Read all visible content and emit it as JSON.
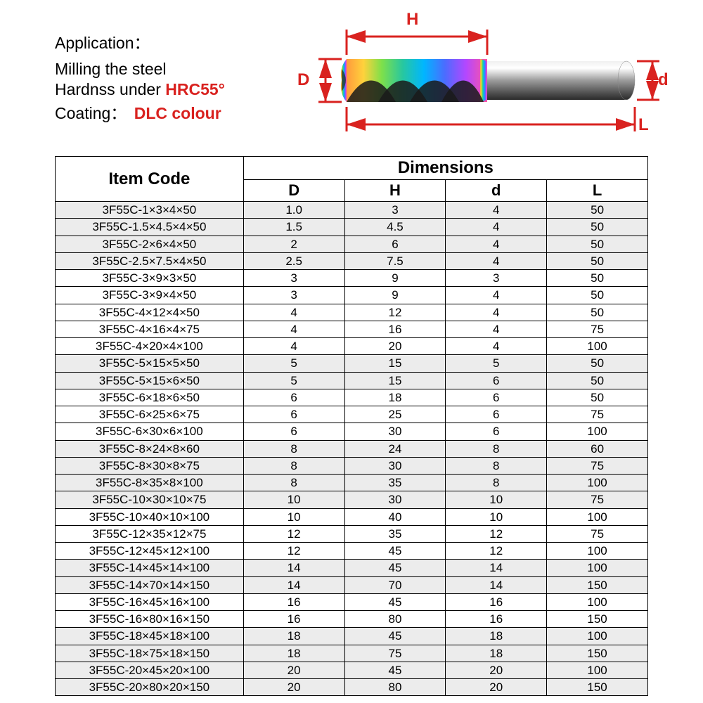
{
  "header": {
    "application_label": "Application：",
    "line1": "Milling the steel",
    "line2_prefix": "Hardnss under ",
    "line2_hrc": "HRC55°",
    "coating_label": "Coating：",
    "coating_value": "DLC colour"
  },
  "diagram": {
    "labels": {
      "D": "D",
      "H": "H",
      "d": "d",
      "L": "L"
    },
    "label_color": "#d9221f",
    "label_fontsize": 24,
    "arrow_color": "#d9221f"
  },
  "table": {
    "header_item": "Item Code",
    "header_dimensions": "Dimensions",
    "columns": [
      "D",
      "H",
      "d",
      "L"
    ],
    "shade_color": "#ececec",
    "border_color": "#000000",
    "font_size_body": 17,
    "shaded_rows": [
      0,
      1,
      2,
      3,
      9,
      10,
      14,
      15,
      16,
      17,
      21,
      22,
      25,
      26,
      27,
      28
    ],
    "rows": [
      {
        "code": "3F55C-1×3×4×50",
        "D": "1.0",
        "H": "3",
        "d": "4",
        "L": "50"
      },
      {
        "code": "3F55C-1.5×4.5×4×50",
        "D": "1.5",
        "H": "4.5",
        "d": "4",
        "L": "50"
      },
      {
        "code": "3F55C-2×6×4×50",
        "D": "2",
        "H": "6",
        "d": "4",
        "L": "50"
      },
      {
        "code": "3F55C-2.5×7.5×4×50",
        "D": "2.5",
        "H": "7.5",
        "d": "4",
        "L": "50"
      },
      {
        "code": "3F55C-3×9×3×50",
        "D": "3",
        "H": "9",
        "d": "3",
        "L": "50"
      },
      {
        "code": "3F55C-3×9×4×50",
        "D": "3",
        "H": "9",
        "d": "4",
        "L": "50"
      },
      {
        "code": "3F55C-4×12×4×50",
        "D": "4",
        "H": "12",
        "d": "4",
        "L": "50"
      },
      {
        "code": "3F55C-4×16×4×75",
        "D": "4",
        "H": "16",
        "d": "4",
        "L": "75"
      },
      {
        "code": "3F55C-4×20×4×100",
        "D": "4",
        "H": "20",
        "d": "4",
        "L": "100"
      },
      {
        "code": "3F55C-5×15×5×50",
        "D": "5",
        "H": "15",
        "d": "5",
        "L": "50"
      },
      {
        "code": "3F55C-5×15×6×50",
        "D": "5",
        "H": "15",
        "d": "6",
        "L": "50"
      },
      {
        "code": "3F55C-6×18×6×50",
        "D": "6",
        "H": "18",
        "d": "6",
        "L": "50"
      },
      {
        "code": "3F55C-6×25×6×75",
        "D": "6",
        "H": "25",
        "d": "6",
        "L": "75"
      },
      {
        "code": "3F55C-6×30×6×100",
        "D": "6",
        "H": "30",
        "d": "6",
        "L": "100"
      },
      {
        "code": "3F55C-8×24×8×60",
        "D": "8",
        "H": "24",
        "d": "8",
        "L": "60"
      },
      {
        "code": "3F55C-8×30×8×75",
        "D": "8",
        "H": "30",
        "d": "8",
        "L": "75"
      },
      {
        "code": "3F55C-8×35×8×100",
        "D": "8",
        "H": "35",
        "d": "8",
        "L": "100"
      },
      {
        "code": "3F55C-10×30×10×75",
        "D": "10",
        "H": "30",
        "d": "10",
        "L": "75"
      },
      {
        "code": "3F55C-10×40×10×100",
        "D": "10",
        "H": "40",
        "d": "10",
        "L": "100"
      },
      {
        "code": "3F55C-12×35×12×75",
        "D": "12",
        "H": "35",
        "d": "12",
        "L": "75"
      },
      {
        "code": "3F55C-12×45×12×100",
        "D": "12",
        "H": "45",
        "d": "12",
        "L": "100"
      },
      {
        "code": "3F55C-14×45×14×100",
        "D": "14",
        "H": "45",
        "d": "14",
        "L": "100"
      },
      {
        "code": "3F55C-14×70×14×150",
        "D": "14",
        "H": "70",
        "d": "14",
        "L": "150"
      },
      {
        "code": "3F55C-16×45×16×100",
        "D": "16",
        "H": "45",
        "d": "16",
        "L": "100"
      },
      {
        "code": "3F55C-16×80×16×150",
        "D": "16",
        "H": "80",
        "d": "16",
        "L": "150"
      },
      {
        "code": "3F55C-18×45×18×100",
        "D": "18",
        "H": "45",
        "d": "18",
        "L": "100"
      },
      {
        "code": "3F55C-18×75×18×150",
        "D": "18",
        "H": "75",
        "d": "18",
        "L": "150"
      },
      {
        "code": "3F55C-20×45×20×100",
        "D": "20",
        "H": "45",
        "d": "20",
        "L": "100"
      },
      {
        "code": "3F55C-20×80×20×150",
        "D": "20",
        "H": "80",
        "d": "20",
        "L": "150"
      }
    ]
  }
}
